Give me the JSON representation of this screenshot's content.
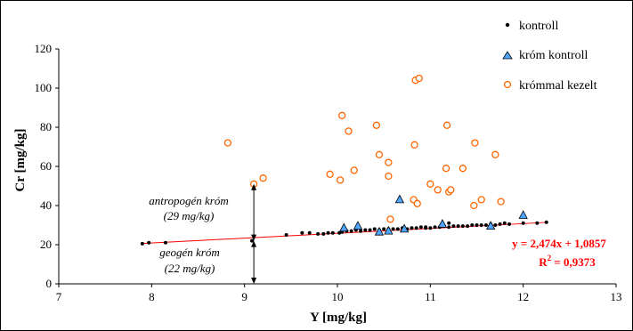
{
  "chart_data": {
    "type": "scatter",
    "title": "",
    "xlabel": "Y [mg/kg]",
    "ylabel": "Cr [mg/kg]",
    "xlim": [
      7,
      13
    ],
    "ylim": [
      0,
      120
    ],
    "x_ticks": [
      "7",
      "8",
      "9",
      "10",
      "11",
      "12",
      "13"
    ],
    "y_ticks": [
      "0",
      "20",
      "40",
      "60",
      "80",
      "100",
      "120"
    ],
    "grid": false,
    "legend_position": "top-right",
    "series": [
      {
        "name": "kontroll",
        "marker": "dot",
        "color": "#000000",
        "points": [
          [
            7.9,
            20.5
          ],
          [
            7.97,
            21
          ],
          [
            8.15,
            21
          ],
          [
            9.08,
            22
          ],
          [
            9.45,
            25
          ],
          [
            9.62,
            26
          ],
          [
            9.7,
            26
          ],
          [
            9.79,
            25.5
          ],
          [
            9.85,
            25.5
          ],
          [
            9.9,
            26
          ],
          [
            9.95,
            26
          ],
          [
            10.02,
            26
          ],
          [
            10.05,
            26.5
          ],
          [
            10.1,
            27
          ],
          [
            10.15,
            27
          ],
          [
            10.2,
            27.5
          ],
          [
            10.25,
            27
          ],
          [
            10.3,
            27.5
          ],
          [
            10.35,
            27.5
          ],
          [
            10.4,
            28
          ],
          [
            10.45,
            27.5
          ],
          [
            10.5,
            28
          ],
          [
            10.55,
            28
          ],
          [
            10.6,
            28
          ],
          [
            10.65,
            28
          ],
          [
            10.7,
            28.5
          ],
          [
            10.75,
            28
          ],
          [
            10.8,
            28.5
          ],
          [
            10.85,
            28.5
          ],
          [
            10.9,
            29
          ],
          [
            10.95,
            29
          ],
          [
            11.0,
            28.5
          ],
          [
            11.05,
            29
          ],
          [
            11.1,
            29
          ],
          [
            11.15,
            29.5
          ],
          [
            11.2,
            29
          ],
          [
            11.25,
            29.5
          ],
          [
            11.3,
            29.5
          ],
          [
            11.35,
            29.5
          ],
          [
            11.4,
            29.5
          ],
          [
            11.45,
            30
          ],
          [
            11.5,
            30
          ],
          [
            11.55,
            30
          ],
          [
            11.6,
            30
          ],
          [
            11.65,
            30.5
          ],
          [
            11.7,
            30
          ],
          [
            11.75,
            30.5
          ],
          [
            11.8,
            31
          ],
          [
            11.85,
            30.5
          ],
          [
            12.0,
            31
          ],
          [
            12.15,
            31
          ],
          [
            12.25,
            31.5
          ],
          [
            11.2,
            31
          ],
          [
            10.95,
            28.5
          ],
          [
            10.72,
            27.5
          ]
        ]
      },
      {
        "name": "króm kontroll",
        "marker": "triangle",
        "color": "#4da6ff",
        "points": [
          [
            10.07,
            28.5
          ],
          [
            10.22,
            29.5
          ],
          [
            10.45,
            26.5
          ],
          [
            10.55,
            27
          ],
          [
            10.67,
            43
          ],
          [
            10.72,
            28
          ],
          [
            11.13,
            30.5
          ],
          [
            11.65,
            29.5
          ],
          [
            12.0,
            35
          ]
        ]
      },
      {
        "name": "krómmal kezelt",
        "marker": "circle",
        "color": "#ff6600",
        "points": [
          [
            8.82,
            72
          ],
          [
            9.1,
            51
          ],
          [
            9.2,
            54
          ],
          [
            9.92,
            56
          ],
          [
            10.03,
            53
          ],
          [
            10.05,
            86
          ],
          [
            10.12,
            78
          ],
          [
            10.18,
            58
          ],
          [
            10.42,
            81
          ],
          [
            10.45,
            66
          ],
          [
            10.55,
            62
          ],
          [
            10.55,
            55
          ],
          [
            10.57,
            33
          ],
          [
            10.82,
            43
          ],
          [
            10.83,
            71
          ],
          [
            10.84,
            104
          ],
          [
            10.88,
            105
          ],
          [
            10.86,
            41
          ],
          [
            11.0,
            51
          ],
          [
            11.08,
            48
          ],
          [
            11.17,
            59
          ],
          [
            11.18,
            81
          ],
          [
            11.2,
            47
          ],
          [
            11.22,
            48
          ],
          [
            11.35,
            59
          ],
          [
            11.47,
            40
          ],
          [
            11.48,
            72
          ],
          [
            11.55,
            43
          ],
          [
            11.7,
            66
          ],
          [
            11.76,
            42
          ]
        ]
      }
    ],
    "trendline": {
      "slope": 2.474,
      "intercept": 1.0857,
      "x_range": [
        7.9,
        12.25
      ],
      "color": "#ff0000"
    },
    "equation_text": "y = 2,474x + 1,0857",
    "r2_label": "R",
    "r2_sup": "2",
    "r2_value": " = 0,9373",
    "annotations": {
      "anthropogenic_line1": "antropogén króm",
      "anthropogenic_line2": "(29 mg/kg)",
      "geogenic_line1": "geogén króm",
      "geogenic_line2": "(22 mg/kg)",
      "arrow_x": 9.1,
      "arrow_top_y": 51,
      "arrow_mid_y": 22,
      "arrow_bottom_y": 0
    }
  }
}
